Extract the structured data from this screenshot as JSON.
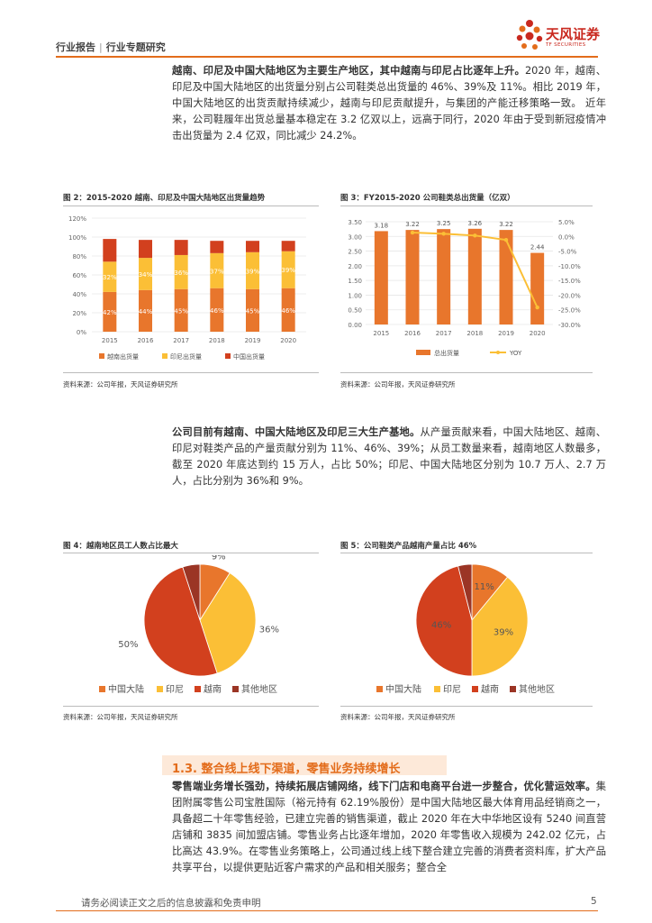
{
  "header": {
    "category": "行业报告",
    "subcategory": "行业专题研究",
    "brand_cn": "天风证券",
    "brand_en": "TF SECURITIES"
  },
  "para1": {
    "bold": "越南、印尼及中国大陆地区为主要生产地区，其中越南与印尼占比逐年上升。",
    "text": "2020 年，越南、印尼及中国大陆地区的出货量分别占公司鞋类总出货量的 46%、39%及 11%。相比 2019 年，中国大陆地区的出货贡献持续减少，越南与印尼贡献提升，与集团的产能迁移策略一致。 近年来，公司鞋履年出货总量基本稳定在 3.2 亿双以上，远高于同行，2020 年由于受到新冠疫情冲击出货量为 2.4 亿双，同比减少 24.2%。"
  },
  "fig2": {
    "title": "图 2：2015-2020 越南、印尼及中国大陆地区出货量趋势",
    "source": "资料来源：公司年报，天风证券研究所",
    "chart_data": {
      "type": "bar",
      "stacked": true,
      "categories": [
        "2015",
        "2016",
        "2017",
        "2018",
        "2019",
        "2020"
      ],
      "y_ticks": [
        "0%",
        "20%",
        "40%",
        "60%",
        "80%",
        "100%",
        "120%"
      ],
      "ylim": [
        0,
        120
      ],
      "series": [
        {
          "name": "越南出货量",
          "color": "#e8762c",
          "values": [
            42,
            44,
            45,
            46,
            45,
            46
          ],
          "labels": [
            "42%",
            "44%",
            "45%",
            "46%",
            "45%",
            "46%"
          ]
        },
        {
          "name": "印尼出货量",
          "color": "#fbbf36",
          "values": [
            32,
            34,
            36,
            37,
            39,
            39
          ],
          "labels": [
            "32%",
            "34%",
            "36%",
            "37%",
            "39%",
            "39%"
          ]
        },
        {
          "name": "中国出货量",
          "color": "#d2401e",
          "values": [
            24,
            19,
            16,
            13,
            12,
            11
          ],
          "labels": [
            "",
            "",
            "",
            "",
            "",
            ""
          ]
        }
      ],
      "grid": true,
      "legend": "bottom"
    }
  },
  "fig3": {
    "title": "图 3：FY2015-2020 公司鞋类总出货量（亿双）",
    "source": "资料来源：公司年报，天风证券研究所",
    "chart_data": {
      "type": "bar",
      "categories": [
        "2015",
        "2016",
        "2017",
        "2018",
        "2019",
        "2020"
      ],
      "left_ticks": [
        "0.00",
        "0.50",
        "1.00",
        "1.50",
        "2.00",
        "2.50",
        "3.00",
        "3.50"
      ],
      "right_ticks": [
        "5.0%",
        "0.0%",
        "-5.0%",
        "-10.0%",
        "-15.0%",
        "-20.0%",
        "-25.0%",
        "-30.0%"
      ],
      "ylim": [
        0,
        3.5
      ],
      "y2lim": [
        -30,
        5
      ],
      "series": [
        {
          "name": "总出货量",
          "color": "#e8762c",
          "values": [
            3.18,
            3.22,
            3.25,
            3.26,
            3.22,
            2.44
          ],
          "labels": [
            "3.18",
            "3.22",
            "3.25",
            "3.26",
            "3.22",
            "2.44"
          ]
        },
        {
          "name": "YOY",
          "color": "#fbbf36",
          "type": "line",
          "values": [
            null,
            1.3,
            0.9,
            0.3,
            -1.2,
            -24.2
          ]
        }
      ],
      "grid": true,
      "legend": "bottom"
    }
  },
  "para2": {
    "bold": "公司目前有越南、中国大陆地区及印尼三大生产基地。",
    "text": "从产量贡献来看，中国大陆地区、越南、印尼对鞋类产品的产量贡献分别为 11%、46%、39%；从员工数量来看，越南地区人数最多，截至 2020 年底达到约 15 万人，占比 50%；印尼、中国大陆地区分别为 10.7 万人、2.7 万人，占比分别为 36%和 9%。"
  },
  "fig4": {
    "title": "图 4：越南地区员工人数占比最大",
    "source": "资料来源：公司年报，天风证券研究所",
    "chart_data": {
      "type": "pie",
      "slices": [
        {
          "name": "中国大陆",
          "value": 9,
          "label": "9%",
          "color": "#e8762c"
        },
        {
          "name": "印尼",
          "value": 36,
          "label": "36%",
          "color": "#fbbf36"
        },
        {
          "name": "越南",
          "value": 50,
          "label": "50%",
          "color": "#d2401e"
        },
        {
          "name": "其他地区",
          "value": 5,
          "label": "5%",
          "color": "#9b3525"
        }
      ],
      "legend": "bottom"
    }
  },
  "fig5": {
    "title": "图 5：公司鞋类产品越南产量占比 46%",
    "source": "资料来源：公司年报，天风证券研究所",
    "chart_data": {
      "type": "pie",
      "slices": [
        {
          "name": "中国大陆",
          "value": 11,
          "label": "11%",
          "color": "#e8762c"
        },
        {
          "name": "印尼",
          "value": 39,
          "label": "39%",
          "color": "#fbbf36"
        },
        {
          "name": "越南",
          "value": 46,
          "label": "46%",
          "color": "#d2401e"
        },
        {
          "name": "其他地区",
          "value": 4,
          "label": "4%",
          "color": "#9b3525"
        }
      ],
      "legend": "bottom"
    }
  },
  "section": {
    "heading": "1.3. 整合线上线下渠道，零售业务持续增长"
  },
  "para3": {
    "bold": "零售端业务增长强劲，持续拓展店铺网络，线下门店和电商平台进一步整合，优化营运效率。",
    "text": "集团附属零售公司宝胜国际（裕元持有 62.19%股份）是中国大陆地区最大体育用品经销商之一，具备超二十年零售经验，已建立完善的销售渠道，截止 2020 年在大中华地区设有 5240 间直营店铺和 3835 间加盟店铺。零售业务占比逐年增加，2020 年零售收入规模为 242.02 亿元，占比高达 43.9%。在零售业务策略上，公司通过线上线下整合建立完善的消费者资料库，扩大产品共享平台，以提供更贴近客户需求的产品和相关服务；整合全"
  },
  "footer": {
    "disclaimer": "请务必阅读正文之后的信息披露和免责申明",
    "page": "5"
  }
}
